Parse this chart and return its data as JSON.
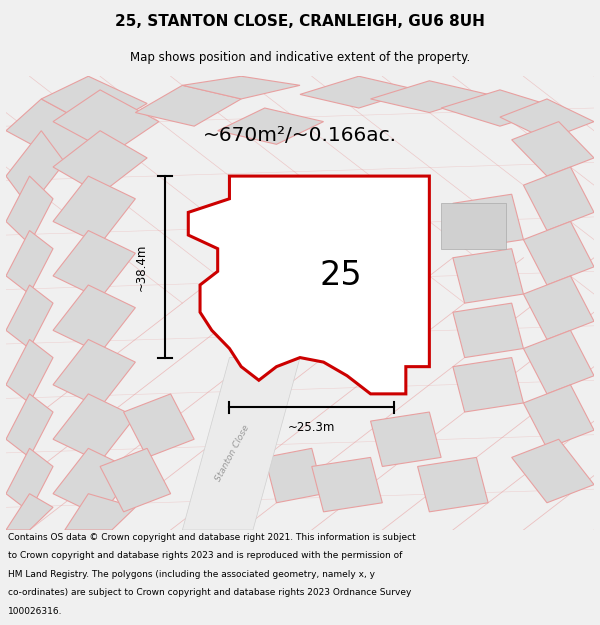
{
  "title": "25, STANTON CLOSE, CRANLEIGH, GU6 8UH",
  "subtitle": "Map shows position and indicative extent of the property.",
  "area_label": "~670m²/~0.166ac.",
  "number_label": "25",
  "width_label": "~25.3m",
  "height_label": "~38.4m",
  "road_label": "Stanton Close",
  "footer_line1": "Contains OS data © Crown copyright and database right 2021. This information is subject",
  "footer_line2": "to Crown copyright and database rights 2023 and is reproduced with the permission of",
  "footer_line3": "HM Land Registry. The polygons (including the associated geometry, namely x, y",
  "footer_line4": "co-ordinates) are subject to Crown copyright and database rights 2023 Ordnance Survey",
  "footer_line5": "100026316.",
  "bg_color": "#f0f0f0",
  "map_bg": "#ffffff",
  "property_fill": "#ffffff",
  "property_edge": "#cc0000",
  "light_red": "#e8a0a0",
  "plot_color": "#d8d8d8",
  "road_color": "#e0e0e0"
}
